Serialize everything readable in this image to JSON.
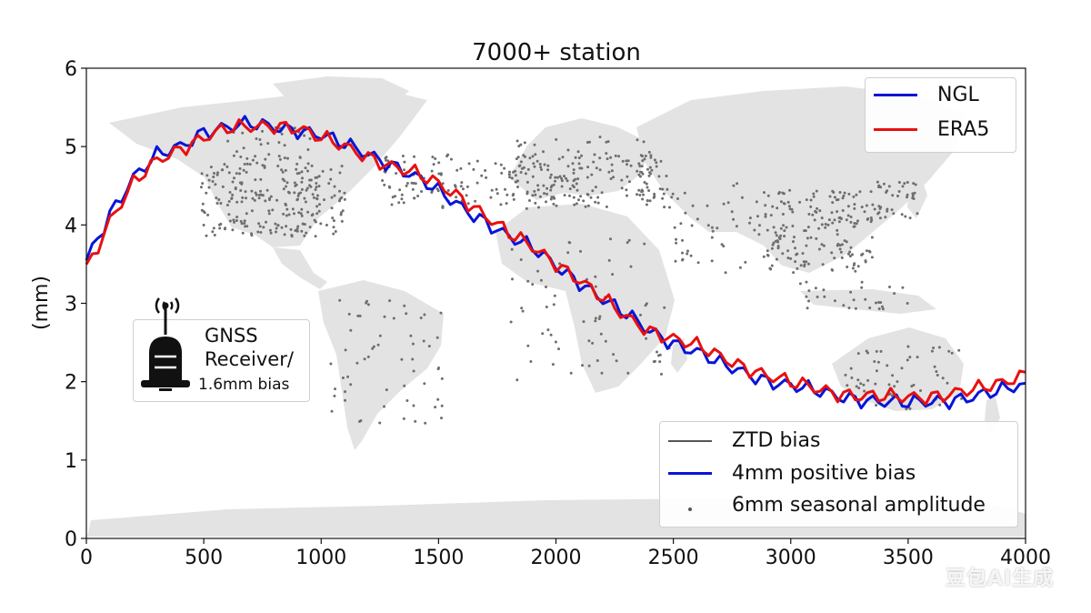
{
  "chart_data": {
    "type": "line",
    "title": "7000+ station",
    "xlabel": "",
    "ylabel": "(mm)",
    "xlim": [
      0,
      4000
    ],
    "ylim": [
      0,
      6
    ],
    "xticks": [
      0,
      500,
      1000,
      1500,
      2000,
      2500,
      3000,
      3500,
      4000
    ],
    "yticks": [
      0,
      1,
      2,
      3,
      4,
      5,
      6
    ],
    "grid": false,
    "background": "grey world map with GNSS station dots",
    "series": [
      {
        "name": "NGL",
        "color": "#0a14d6",
        "x": [
          0,
          100,
          200,
          300,
          400,
          500,
          600,
          700,
          800,
          900,
          1000,
          1100,
          1200,
          1300,
          1400,
          1500,
          1600,
          1700,
          1800,
          1900,
          2000,
          2100,
          2200,
          2300,
          2400,
          2500,
          2600,
          2700,
          2800,
          2900,
          3000,
          3100,
          3200,
          3300,
          3400,
          3500,
          3600,
          3700,
          3800,
          3900,
          4000
        ],
        "y": [
          3.55,
          4.15,
          4.6,
          4.88,
          5.0,
          5.2,
          5.25,
          5.28,
          5.25,
          5.22,
          5.15,
          5.02,
          4.9,
          4.78,
          4.62,
          4.42,
          4.22,
          4.05,
          3.85,
          3.7,
          3.48,
          3.28,
          3.05,
          2.85,
          2.65,
          2.5,
          2.38,
          2.22,
          2.12,
          2.02,
          1.95,
          1.88,
          1.82,
          1.78,
          1.74,
          1.72,
          1.75,
          1.78,
          1.82,
          1.88,
          1.98
        ]
      },
      {
        "name": "ERA5",
        "color": "#e81010",
        "x": [
          0,
          100,
          200,
          300,
          400,
          500,
          600,
          700,
          800,
          900,
          1000,
          1100,
          1200,
          1300,
          1400,
          1500,
          1600,
          1700,
          1800,
          1900,
          2000,
          2100,
          2200,
          2300,
          2400,
          2500,
          2600,
          2700,
          2800,
          2900,
          3000,
          3100,
          3200,
          3300,
          3400,
          3500,
          3600,
          3700,
          3800,
          3900,
          4000
        ],
        "y": [
          3.45,
          4.05,
          4.52,
          4.82,
          4.98,
          5.12,
          5.22,
          5.25,
          5.28,
          5.24,
          5.1,
          5.0,
          4.88,
          4.75,
          4.65,
          4.52,
          4.35,
          4.12,
          3.88,
          3.72,
          3.52,
          3.3,
          3.05,
          2.82,
          2.66,
          2.55,
          2.45,
          2.32,
          2.2,
          2.08,
          1.98,
          1.92,
          1.86,
          1.82,
          1.8,
          1.8,
          1.82,
          1.86,
          1.9,
          1.98,
          2.12
        ]
      }
    ],
    "legend_main": {
      "position": "top-right",
      "entries": [
        {
          "label": "NGL",
          "color": "#0a14d6"
        },
        {
          "label": "ERA5",
          "color": "#e81010"
        }
      ]
    },
    "legend_secondary": {
      "position": "bottom-right",
      "entries": [
        {
          "label": "ZTD bias",
          "color": "#555555",
          "kind": "line"
        },
        {
          "label": "4mm positive bias",
          "color": "#0a14d6",
          "kind": "line"
        },
        {
          "label": "6mm seasonal amplitude",
          "color": "#555555",
          "kind": "dot"
        }
      ]
    },
    "annotation": {
      "icon": "gnss-receiver-icon",
      "line1": "GNSS",
      "line2": "Receiver/",
      "line3": "1.6mm bias"
    }
  },
  "watermark": "豆包AI生成"
}
